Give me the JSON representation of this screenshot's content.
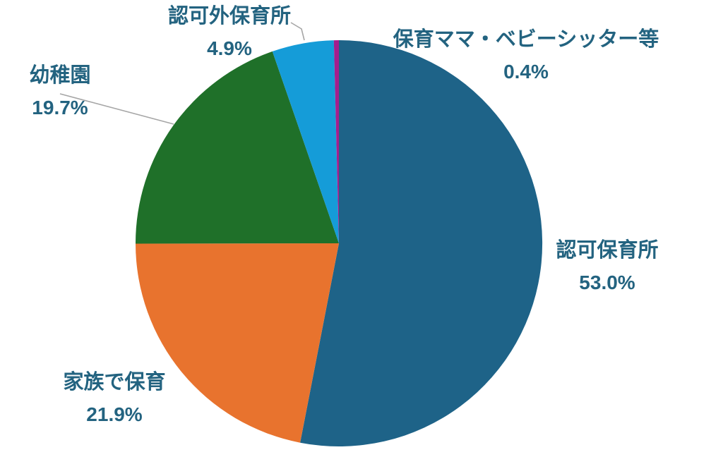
{
  "chart_data": {
    "type": "pie",
    "title": "",
    "legend_position": "none",
    "start_angle_deg": 0,
    "direction": "clockwise",
    "label_color": "#236380",
    "leader_line_color": "#A6A6A6",
    "background_color": "#FFFFFF",
    "slices": [
      {
        "label": "認可保育所",
        "value": 53.0,
        "display": "53.0%",
        "color": "#1E6388"
      },
      {
        "label": "家族で保育",
        "value": 21.9,
        "display": "21.9%",
        "color": "#E8732E"
      },
      {
        "label": "幼稚園",
        "value": 19.7,
        "display": "19.7%",
        "color": "#1F7029"
      },
      {
        "label": "認可外保育所",
        "value": 4.9,
        "display": "4.9%",
        "color": "#159CD8"
      },
      {
        "label": "保育ママ・ベビーシッター等",
        "value": 0.4,
        "display": "0.4%",
        "color": "#A51E8C"
      }
    ]
  }
}
